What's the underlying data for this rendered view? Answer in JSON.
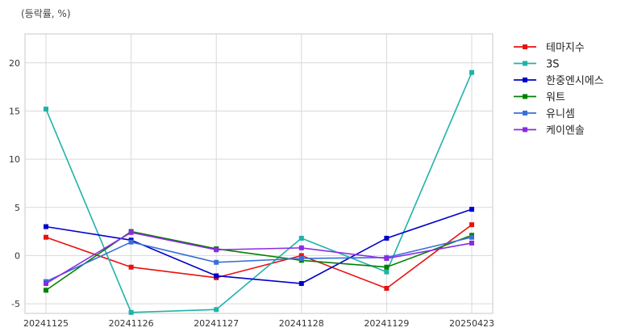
{
  "unit_label": "(등락률, %)",
  "chart_data": {
    "type": "line",
    "categories": [
      "20241125",
      "20241126",
      "20241127",
      "20241128",
      "20241129",
      "20250423"
    ],
    "ylim": [
      -6,
      23
    ],
    "yticks": [
      -5,
      0,
      5,
      10,
      15,
      20
    ],
    "grid": true,
    "legend_position": "outside-right",
    "series": [
      {
        "name": "테마지수",
        "color": "#e8110f",
        "values": [
          1.9,
          -1.2,
          -2.3,
          0.0,
          -3.4,
          3.2
        ]
      },
      {
        "name": "3S",
        "color": "#20b2aa",
        "values": [
          15.2,
          -5.9,
          -5.6,
          1.8,
          -1.7,
          19.0
        ]
      },
      {
        "name": "한중엔시에스",
        "color": "#0000cd",
        "values": [
          3.0,
          1.6,
          -2.1,
          -2.9,
          1.8,
          4.8
        ]
      },
      {
        "name": "워트",
        "color": "#008000",
        "values": [
          -3.6,
          2.5,
          0.7,
          -0.5,
          -1.2,
          2.1
        ]
      },
      {
        "name": "유니셈",
        "color": "#3a6fd8",
        "values": [
          -2.7,
          1.4,
          -0.7,
          -0.3,
          -0.2,
          1.9
        ]
      },
      {
        "name": "케이엔솔",
        "color": "#8a2be2",
        "values": [
          -2.9,
          2.4,
          0.6,
          0.8,
          -0.3,
          1.3
        ]
      }
    ]
  }
}
